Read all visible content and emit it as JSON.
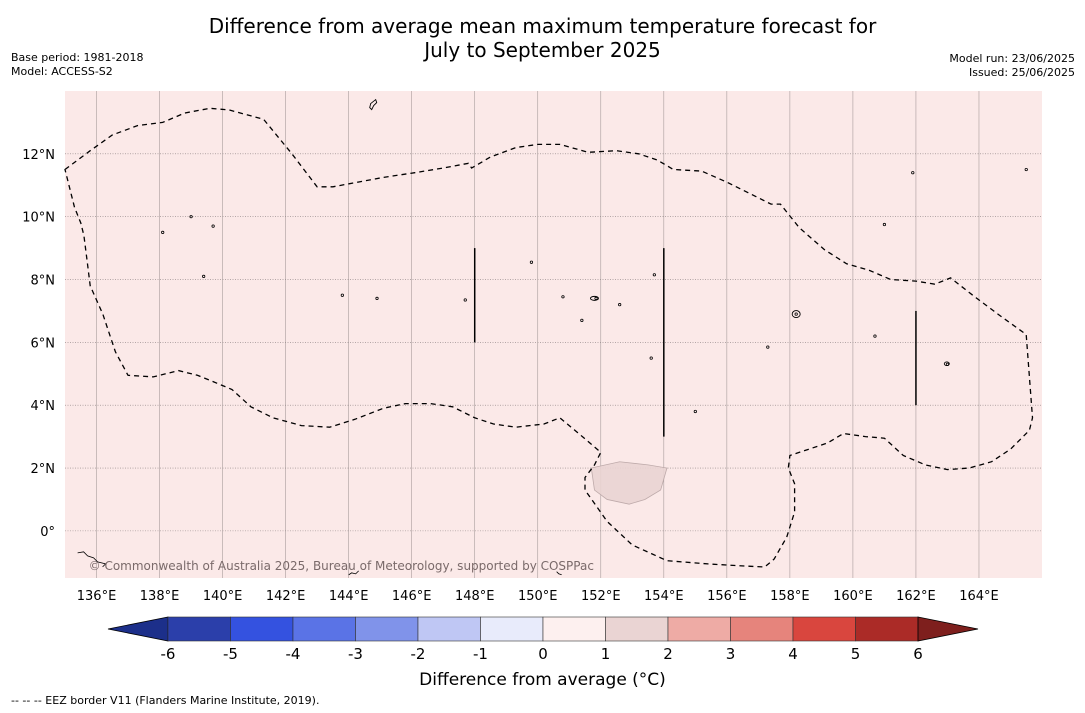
{
  "title": {
    "line1": "Difference from average mean maximum temperature forecast for",
    "line2": "July to September 2025"
  },
  "meta_left": {
    "base_period": "Base period: 1981-2018",
    "model": "Model: ACCESS-S2"
  },
  "meta_right": {
    "model_run": "Model run: 23/06/2025",
    "issued": "Issued: 25/06/2025"
  },
  "copyright": "© Commonwealth of Australia 2025, Bureau of Meteorology, supported by COSPPac",
  "footer_note": "--  --  -- EEZ border V11 (Flanders Marine Institute, 2019).",
  "map": {
    "lon_range": [
      135,
      166
    ],
    "lat_range": [
      -1.5,
      14
    ],
    "lon_ticks": [
      "136°E",
      "138°E",
      "140°E",
      "142°E",
      "144°E",
      "146°E",
      "148°E",
      "150°E",
      "152°E",
      "154°E",
      "156°E",
      "158°E",
      "160°E",
      "162°E",
      "164°E"
    ],
    "lat_ticks": [
      "0°",
      "2°N",
      "4°N",
      "6°N",
      "8°N",
      "10°N",
      "12°N"
    ],
    "forecast_fill_color": "#fbe9e8",
    "anomaly_patch": {
      "category": "1 to 2",
      "color": "#ead4d3"
    }
  },
  "colorbar": {
    "label": "Difference from average (°C)",
    "ticks": [
      "-6",
      "-5",
      "-4",
      "-3",
      "-2",
      "-1",
      "0",
      "1",
      "2",
      "3",
      "4",
      "5",
      "6"
    ],
    "colors": [
      "#1c2f8a",
      "#2b3faa",
      "#3452e0",
      "#5a73e6",
      "#8093ea",
      "#bfc7f4",
      "#e8ebfb",
      "#fdf0ef",
      "#ead4d3",
      "#eeaba5",
      "#e6847c",
      "#d9463e",
      "#ab2b27",
      "#7e1f1d"
    ]
  }
}
